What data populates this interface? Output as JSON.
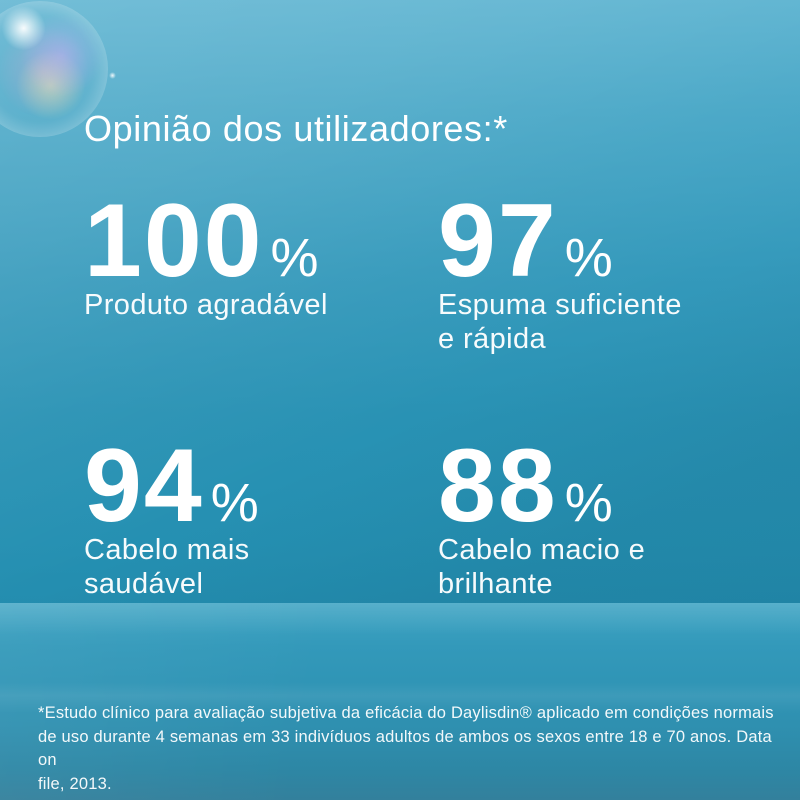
{
  "title": "Opinião dos utilizadores:*",
  "stats": [
    {
      "value": "100",
      "unit": "%",
      "label": "Produto agradável"
    },
    {
      "value": "97",
      "unit": "%",
      "label": "Espuma suficiente\ne rápida"
    },
    {
      "value": "94",
      "unit": "%",
      "label": "Cabelo mais\nsaudável"
    },
    {
      "value": "88",
      "unit": "%",
      "label": "Cabelo macio e\nbrilhante"
    }
  ],
  "footnote": "*Estudo clínico para avaliação subjetiva da eficácia do Daylisdin® aplicado em condições normais\nde uso durante 4 semanas em 33 indivíduos adultos de ambos os sexos entre 18 e 70 anos. Data on\nfile, 2013.",
  "colors": {
    "background_top": "#58b1cf",
    "background_mid": "#2890b2",
    "background_bottom": "#33809c",
    "text": "#ffffff"
  }
}
